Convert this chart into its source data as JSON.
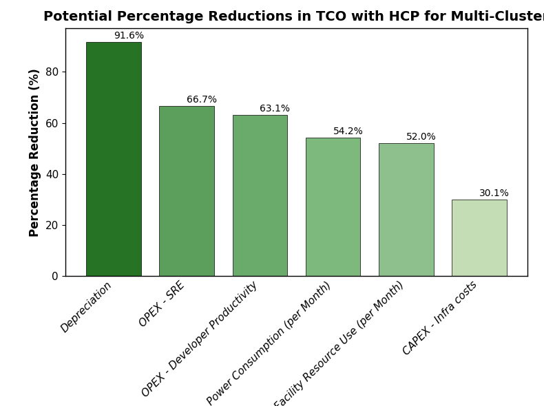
{
  "title": "Potential Percentage Reductions in TCO with HCP for Multi-Cluster",
  "categories": [
    "Depreciation",
    "OPEX - SRE",
    "OPEX - Developer Productivity",
    "Power Consumption (per Month)",
    "Facility Resource Use (per Month)",
    "CAPEX - Infra costs"
  ],
  "values": [
    91.6,
    66.7,
    63.1,
    54.2,
    52.0,
    30.1
  ],
  "bar_colors": [
    "#267326",
    "#5c9e5c",
    "#6aaa6a",
    "#7db87d",
    "#8ec08e",
    "#c5ddb5"
  ],
  "ylabel": "Percentage Reduction (%)",
  "ylim": [
    0,
    97
  ],
  "yticks": [
    0,
    20,
    40,
    60,
    80
  ],
  "title_fontsize": 14,
  "label_fontsize": 12,
  "tick_fontsize": 11,
  "bar_label_fontsize": 10,
  "figsize": [
    7.9,
    5.9
  ],
  "dpi": 100,
  "background_color": "#ffffff",
  "edge_color": "#000000",
  "edge_linewidth": 0.5,
  "bar_width": 0.75
}
